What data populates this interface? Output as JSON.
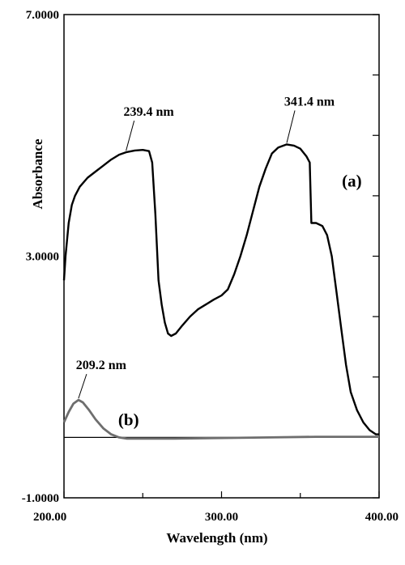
{
  "chart_data": {
    "type": "line",
    "title": "",
    "xlabel": "Wavelength (nm)",
    "ylabel": "Absorbance",
    "xlim": [
      200,
      400
    ],
    "ylim": [
      -1,
      7
    ],
    "x_tick_labels": [
      {
        "value": 200,
        "label": "200.00"
      },
      {
        "value": 300,
        "label": "300.00"
      },
      {
        "value": 400,
        "label": "400.00"
      }
    ],
    "y_tick_labels": [
      {
        "value": 7,
        "label": "7.0000"
      },
      {
        "value": 3,
        "label": "3.0000"
      },
      {
        "value": -1,
        "label": "-1.0000"
      }
    ],
    "y_minor_ticks": [
      6,
      5,
      4,
      2,
      1,
      0
    ],
    "x_minor_ticks": [
      250,
      350
    ],
    "baseline": 0,
    "grid": false,
    "series": [
      {
        "name": "(a)",
        "color": "#000000",
        "points": [
          [
            200,
            2.6
          ],
          [
            201,
            3.0
          ],
          [
            203,
            3.55
          ],
          [
            205,
            3.85
          ],
          [
            207,
            4.0
          ],
          [
            210,
            4.15
          ],
          [
            215,
            4.3
          ],
          [
            220,
            4.4
          ],
          [
            225,
            4.5
          ],
          [
            230,
            4.6
          ],
          [
            235,
            4.68
          ],
          [
            239.4,
            4.72
          ],
          [
            245,
            4.75
          ],
          [
            250,
            4.76
          ],
          [
            254,
            4.74
          ],
          [
            256,
            4.55
          ],
          [
            258,
            3.7
          ],
          [
            260,
            2.6
          ],
          [
            262,
            2.2
          ],
          [
            264,
            1.9
          ],
          [
            266,
            1.72
          ],
          [
            268,
            1.68
          ],
          [
            271,
            1.72
          ],
          [
            275,
            1.85
          ],
          [
            280,
            2.0
          ],
          [
            285,
            2.12
          ],
          [
            290,
            2.2
          ],
          [
            295,
            2.28
          ],
          [
            300,
            2.35
          ],
          [
            304,
            2.45
          ],
          [
            308,
            2.7
          ],
          [
            312,
            3.0
          ],
          [
            316,
            3.35
          ],
          [
            320,
            3.75
          ],
          [
            324,
            4.15
          ],
          [
            328,
            4.45
          ],
          [
            332,
            4.7
          ],
          [
            336,
            4.8
          ],
          [
            341.4,
            4.85
          ],
          [
            346,
            4.83
          ],
          [
            350,
            4.78
          ],
          [
            354,
            4.65
          ],
          [
            356,
            4.55
          ],
          [
            357,
            3.55
          ],
          [
            360,
            3.55
          ],
          [
            364,
            3.5
          ],
          [
            367,
            3.35
          ],
          [
            370,
            3.0
          ],
          [
            373,
            2.4
          ],
          [
            376,
            1.8
          ],
          [
            379,
            1.2
          ],
          [
            382,
            0.75
          ],
          [
            386,
            0.45
          ],
          [
            390,
            0.25
          ],
          [
            394,
            0.12
          ],
          [
            398,
            0.05
          ],
          [
            400,
            0.05
          ]
        ]
      },
      {
        "name": "(b)",
        "color": "#6e6e6e",
        "points": [
          [
            200,
            0.25
          ],
          [
            203,
            0.42
          ],
          [
            206,
            0.56
          ],
          [
            209.2,
            0.62
          ],
          [
            212,
            0.58
          ],
          [
            216,
            0.45
          ],
          [
            220,
            0.3
          ],
          [
            225,
            0.15
          ],
          [
            230,
            0.05
          ],
          [
            235,
            0.0
          ],
          [
            240,
            -0.02
          ],
          [
            250,
            -0.02
          ],
          [
            270,
            -0.02
          ],
          [
            300,
            -0.01
          ],
          [
            330,
            0.0
          ],
          [
            360,
            0.01
          ],
          [
            380,
            0.01
          ],
          [
            400,
            0.01
          ]
        ]
      }
    ],
    "annotations": [
      {
        "text": "239.4 nm",
        "x": 239.4,
        "y": 4.72
      },
      {
        "text": "341.4 nm",
        "x": 341.4,
        "y": 4.85
      },
      {
        "text": "209.2 nm",
        "x": 209.2,
        "y": 0.62
      }
    ],
    "curve_labels": [
      {
        "text": "(a)",
        "series": "(a)"
      },
      {
        "text": "(b)",
        "series": "(b)"
      }
    ]
  }
}
